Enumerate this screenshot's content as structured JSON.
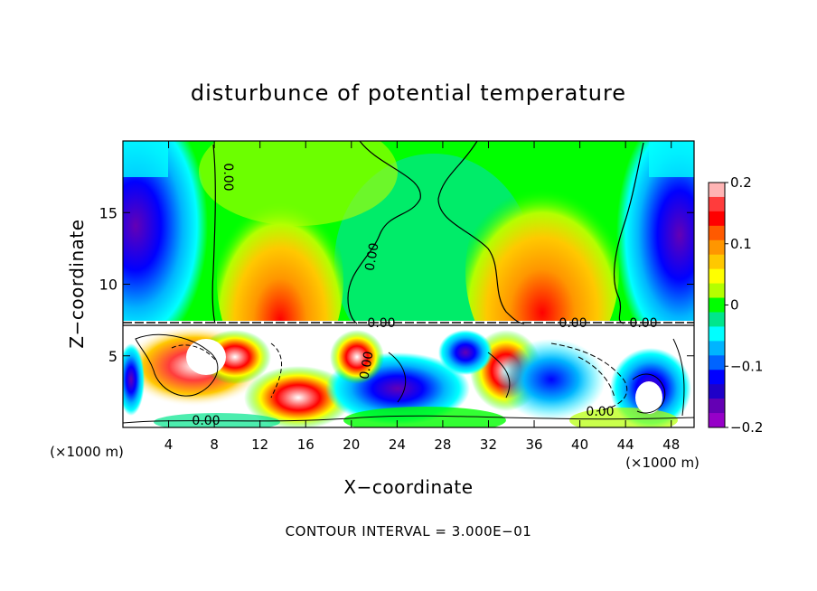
{
  "chart_data": {
    "type": "heatmap",
    "title": "disturbunce of potential temperature",
    "xlabel": "X−coordinate",
    "ylabel": "Z−coordinate",
    "x_unit_left": "(×1000 m)",
    "x_unit_right": "(×1000 m)",
    "xlim": [
      0,
      50
    ],
    "ylim": [
      0,
      20
    ],
    "x_ticks": [
      4,
      8,
      12,
      16,
      20,
      24,
      28,
      32,
      36,
      40,
      44,
      48
    ],
    "y_ticks": [
      5,
      10,
      15
    ],
    "colorbar": {
      "range": [
        -0.2,
        0.2
      ],
      "ticks": [
        "0.2",
        "0.1",
        "0",
        "−0.1",
        "−0.2"
      ],
      "colors": [
        "#ffb4b4",
        "#ff3c3c",
        "#ff0000",
        "#ff5a00",
        "#ff9600",
        "#ffc800",
        "#ffff00",
        "#b4ff00",
        "#00ff00",
        "#00e68c",
        "#00ffff",
        "#00b4ff",
        "#0064ff",
        "#0000ff",
        "#1e00c8",
        "#6400b4",
        "#9600c8"
      ]
    },
    "contour_labels": [
      "0.00",
      "0.00",
      "0.00",
      "0.00",
      "0.00",
      "0.00",
      "0.00",
      "0.00"
    ],
    "footer": "CONTOUR INTERVAL = 3.000E−01"
  }
}
